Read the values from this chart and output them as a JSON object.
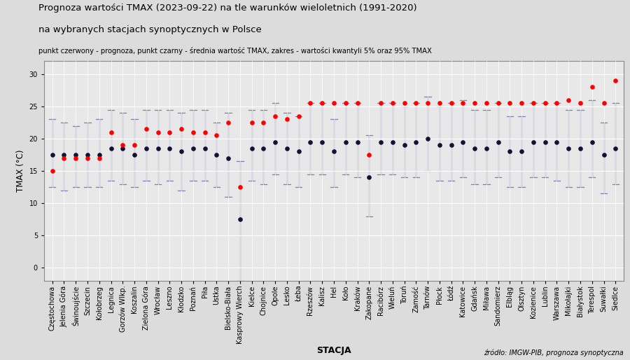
{
  "title_line1": "Prognoza wartości TMAX (2023-09-22) na tle warunków wieloletnich (1991-2020)",
  "title_line2": "na wybranych stacjach synoptycznych w Polsce",
  "subtitle": "punkt czerwony - prognoza, punkt czarny - średnia wartość TMAX, zakres - wartości kwantyli 5% oraz 95% TMAX",
  "xlabel": "STACJA",
  "ylabel": "TMAX (°C)",
  "source": "źródło: IMGW-PIB, prognoza synoptyczna",
  "stations": [
    "Częstochowa",
    "Jelenia Góra",
    "Świnoujście",
    "Szczecin",
    "Kołobrzeg",
    "Legnica",
    "Gorzów Wlkp.",
    "Koszalin",
    "Zielona Góra",
    "Wrocław",
    "Leszno",
    "Kłodzko",
    "Poznań",
    "Piła",
    "Ustka",
    "Bielsko-Biała",
    "Kasprowy Wierch",
    "Kielce",
    "Chojnice",
    "Opole",
    "Lesko",
    "Łeba",
    "Rzeszów",
    "Kalisz",
    "Hel",
    "Koło",
    "Kraków",
    "Zakopane",
    "Racibórz",
    "Wieluń",
    "Toruń",
    "Zamość",
    "Tarnów",
    "Płock",
    "Łódź",
    "Katowice",
    "Gdańsk",
    "Miława",
    "Sandomierz",
    "Elbląg",
    "Olsztyn",
    "Kozienice",
    "Lublin",
    "Warszawa",
    "Mikołajki",
    "Białystok",
    "Terespol",
    "Suwałki",
    "Siedlce"
  ],
  "forecast": [
    15.0,
    17.0,
    17.0,
    17.0,
    17.0,
    21.0,
    19.0,
    19.0,
    21.5,
    21.0,
    21.0,
    21.5,
    21.0,
    21.0,
    20.5,
    22.5,
    12.5,
    22.5,
    22.5,
    23.5,
    23.0,
    23.5,
    25.5,
    25.5,
    25.5,
    25.5,
    25.5,
    17.5,
    25.5,
    25.5,
    25.5,
    25.5,
    25.5,
    25.5,
    25.5,
    25.5,
    25.5,
    25.5,
    25.5,
    25.5,
    25.5,
    25.5,
    25.5,
    25.5,
    26.0,
    25.5,
    28.0,
    25.5,
    29.0
  ],
  "mean": [
    17.5,
    17.5,
    17.5,
    17.5,
    17.5,
    18.5,
    18.5,
    17.5,
    18.5,
    18.5,
    18.5,
    18.0,
    18.5,
    18.5,
    17.5,
    17.0,
    7.5,
    18.5,
    18.5,
    19.5,
    18.5,
    18.0,
    19.5,
    19.5,
    18.0,
    19.5,
    19.5,
    14.0,
    19.5,
    19.5,
    19.0,
    19.5,
    20.0,
    19.0,
    19.0,
    19.5,
    18.5,
    18.5,
    19.5,
    18.0,
    18.0,
    19.5,
    19.5,
    19.5,
    18.5,
    18.5,
    19.5,
    17.5,
    18.5
  ],
  "q05": [
    12.5,
    12.0,
    12.5,
    12.5,
    12.5,
    13.5,
    13.0,
    12.5,
    13.5,
    13.0,
    13.5,
    12.0,
    13.5,
    13.5,
    12.5,
    11.0,
    -2.0,
    13.5,
    13.0,
    14.5,
    13.0,
    12.5,
    14.5,
    14.5,
    12.5,
    14.5,
    14.0,
    8.0,
    14.5,
    14.5,
    14.0,
    14.0,
    15.0,
    13.5,
    13.5,
    14.0,
    13.0,
    13.0,
    14.0,
    12.5,
    12.5,
    14.0,
    14.0,
    13.5,
    12.5,
    12.5,
    14.0,
    11.5,
    13.0
  ],
  "q95": [
    23.0,
    22.5,
    22.0,
    22.5,
    23.0,
    24.5,
    24.0,
    23.0,
    24.5,
    24.5,
    24.5,
    24.0,
    24.5,
    24.5,
    22.5,
    24.0,
    16.5,
    24.5,
    24.5,
    25.5,
    24.0,
    23.5,
    25.5,
    25.5,
    23.0,
    25.5,
    25.5,
    20.5,
    25.5,
    25.5,
    25.0,
    25.5,
    26.5,
    25.0,
    25.5,
    26.0,
    24.5,
    24.5,
    25.5,
    23.5,
    23.5,
    25.5,
    25.5,
    25.5,
    24.5,
    24.5,
    26.0,
    22.5,
    25.5
  ],
  "bg_color": "#dcdcdc",
  "plot_bg_color": "#e8e8e8",
  "grid_color": "white",
  "bar_color": "#8080b0",
  "forecast_color": "red",
  "mean_color": "#111133",
  "ylim": [
    -2,
    32
  ],
  "yticks": [
    0,
    5,
    10,
    15,
    20,
    25,
    30
  ]
}
